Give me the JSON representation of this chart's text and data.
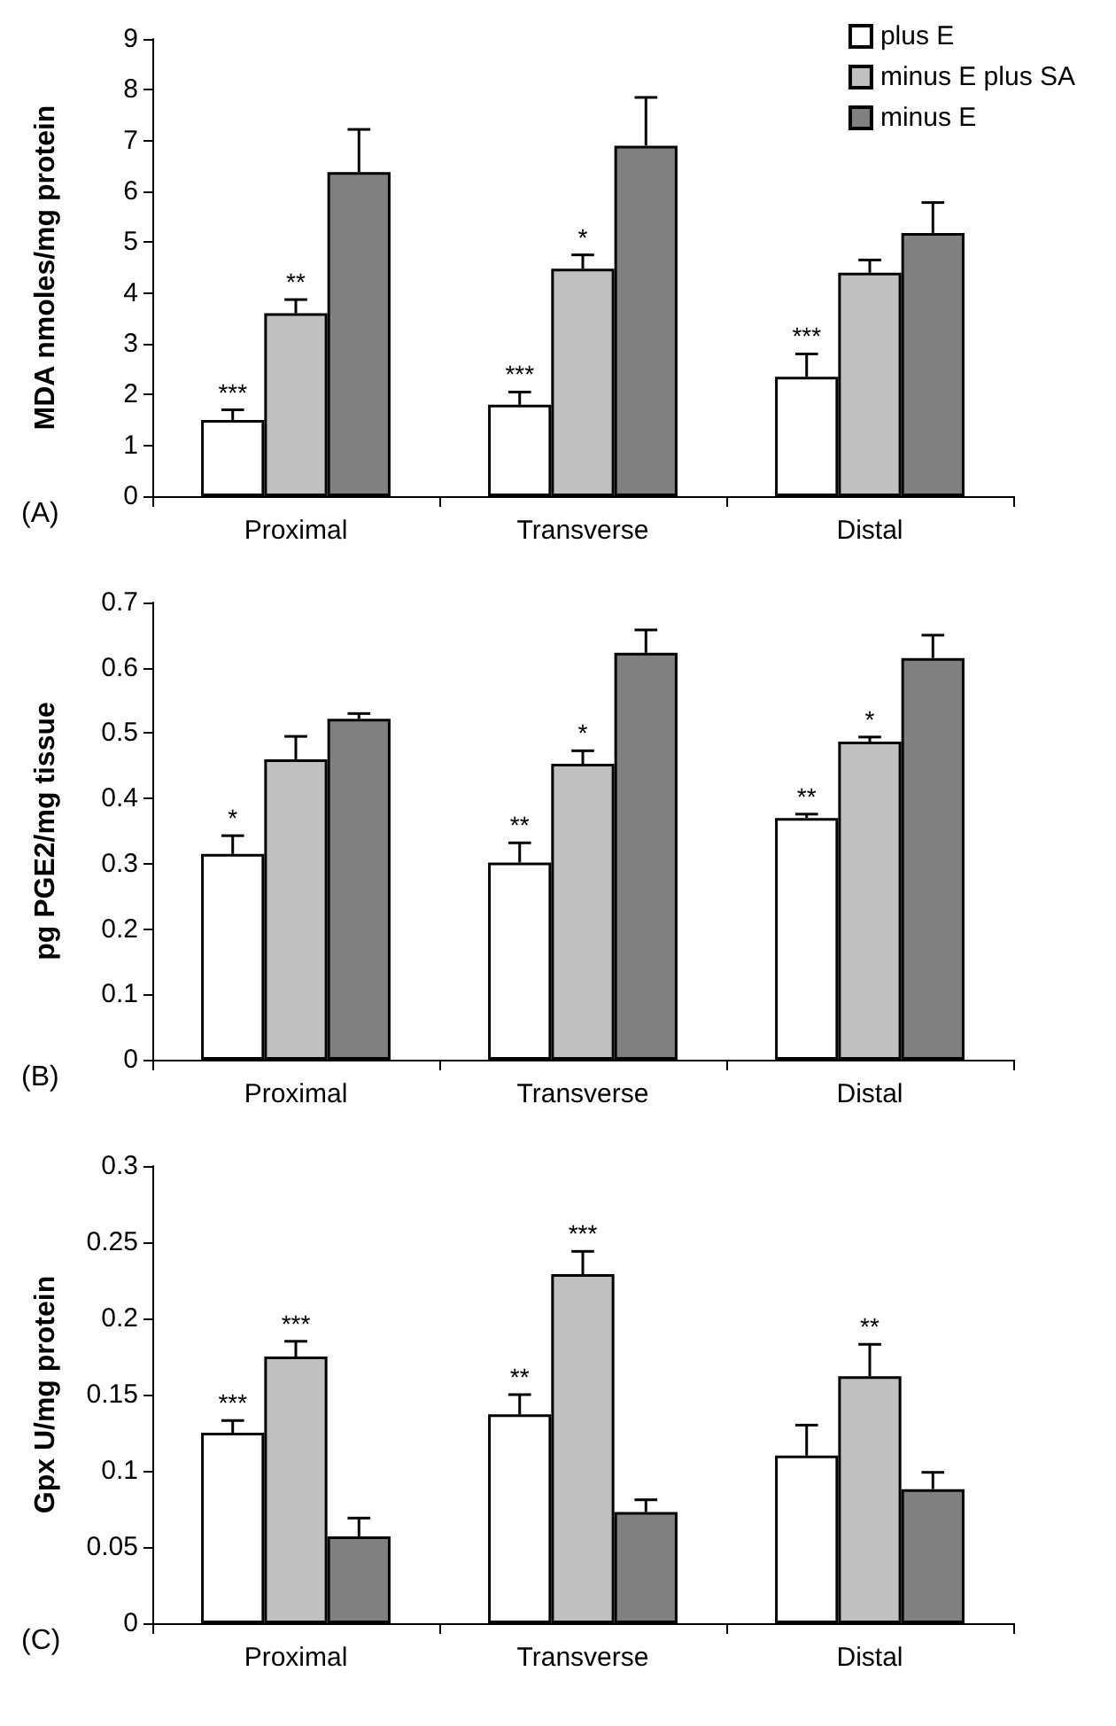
{
  "chart_data": [
    {
      "type": "bar",
      "ylabel": "MDA nmoles/mg protein",
      "categories": [
        "Proximal",
        "Transverse",
        "Distal"
      ],
      "ylim": [
        0,
        9
      ],
      "yticks": [
        0,
        1,
        2,
        3,
        4,
        5,
        6,
        7,
        8,
        9
      ],
      "grid": false,
      "legend": "top right",
      "series": [
        {
          "name": "plus E",
          "color": "#ffffff",
          "values": [
            1.5,
            1.8,
            2.35
          ],
          "errors": [
            [
              1.5,
              1.7
            ],
            [
              1.8,
              2.05
            ],
            [
              2.35,
              2.8
            ]
          ],
          "value_labels": [
            "***",
            "***",
            "***"
          ]
        },
        {
          "name": "minus E plus SA",
          "color": "#c0c0c0",
          "values": [
            3.6,
            4.48,
            4.4
          ],
          "errors": [
            [
              3.6,
              3.87
            ],
            [
              4.48,
              4.75
            ],
            [
              4.4,
              4.65
            ]
          ],
          "value_labels": [
            "**",
            "*",
            null
          ]
        },
        {
          "name": "minus E",
          "color": "#808080",
          "values": [
            6.38,
            6.9,
            5.18
          ],
          "errors": [
            [
              6.38,
              7.22
            ],
            [
              6.9,
              7.85
            ],
            [
              5.18,
              5.78
            ]
          ]
        }
      ],
      "annotations": [
        "(A)"
      ]
    },
    {
      "type": "bar",
      "ylabel": "pg PGE2/mg tissue",
      "categories": [
        "Proximal",
        "Transverse",
        "Distal"
      ],
      "ylim": [
        0,
        0.7
      ],
      "yticks": [
        0,
        0.1,
        0.2,
        0.3,
        0.4,
        0.5,
        0.6,
        0.7
      ],
      "grid": false,
      "series": [
        {
          "color": "#ffffff",
          "values": [
            0.315,
            0.302,
            0.37
          ],
          "errors": [
            [
              0.315,
              0.343
            ],
            [
              0.302,
              0.332
            ],
            [
              0.37,
              0.376
            ]
          ],
          "value_labels": [
            "*",
            "**",
            "**"
          ]
        },
        {
          "color": "#c0c0c0",
          "values": [
            0.46,
            0.453,
            0.487
          ],
          "errors": [
            [
              0.46,
              0.495
            ],
            [
              0.453,
              0.473
            ],
            [
              0.487,
              0.494
            ]
          ],
          "value_labels": [
            null,
            "*",
            "*"
          ]
        },
        {
          "color": "#808080",
          "values": [
            0.522,
            0.623,
            0.615
          ],
          "errors": [
            [
              0.522,
              0.53
            ],
            [
              0.623,
              0.658
            ],
            [
              0.615,
              0.65
            ]
          ]
        }
      ],
      "annotations": [
        "(B)"
      ]
    },
    {
      "type": "bar",
      "ylabel": "Gpx U/mg protein",
      "categories": [
        "Proximal",
        "Transverse",
        "Distal"
      ],
      "ylim": [
        0,
        0.3
      ],
      "yticks": [
        0,
        0.05,
        0.1,
        0.15,
        0.2,
        0.25,
        0.3
      ],
      "grid": false,
      "series": [
        {
          "color": "#ffffff",
          "values": [
            0.125,
            0.137,
            0.11
          ],
          "errors": [
            [
              0.125,
              0.133
            ],
            [
              0.137,
              0.15
            ],
            [
              0.11,
              0.13
            ]
          ],
          "value_labels": [
            "***",
            "**",
            null
          ]
        },
        {
          "color": "#c0c0c0",
          "values": [
            0.175,
            0.229,
            0.162
          ],
          "errors": [
            [
              0.175,
              0.185
            ],
            [
              0.229,
              0.244
            ],
            [
              0.162,
              0.183
            ]
          ],
          "value_labels": [
            "***",
            "***",
            "**"
          ]
        },
        {
          "color": "#808080",
          "values": [
            0.057,
            0.073,
            0.088
          ],
          "errors": [
            [
              0.057,
              0.069
            ],
            [
              0.073,
              0.081
            ],
            [
              0.088,
              0.099
            ]
          ]
        }
      ],
      "annotations": [
        "(C)"
      ]
    }
  ]
}
